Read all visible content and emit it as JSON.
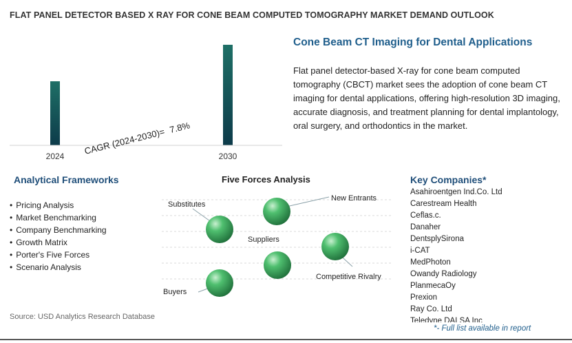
{
  "header": {
    "title": "FLAT PANEL DETECTOR BASED X RAY FOR CONE BEAM COMPUTED TOMOGRAPHY MARKET DEMAND OUTLOOK"
  },
  "chart_data": {
    "type": "bar",
    "categories": [
      "2024",
      "2030"
    ],
    "values": [
      1.0,
      1.57
    ],
    "title": "",
    "xlabel": "",
    "ylabel": "",
    "grid": false,
    "annotation": {
      "label": "CAGR (2024-2030)=",
      "value": "7.8%"
    },
    "bar_gradient": [
      "#1e6f66",
      "#0d3b4a"
    ]
  },
  "summary": {
    "title": "Cone Beam CT Imaging for Dental Applications",
    "text": "Flat panel detector-based X-ray for cone beam computed tomography (CBCT) market sees the adoption of cone beam CT imaging for dental applications, offering high-resolution 3D imaging, accurate diagnosis, and treatment planning for dental implantology, oral surgery, and orthodontics in the market."
  },
  "frameworks": {
    "title": "Analytical Frameworks",
    "items": [
      "Pricing Analysis",
      "Market Benchmarking",
      "Company Benchmarking",
      "Growth Matrix",
      "Porter's Five Forces",
      "Scenario Analysis"
    ]
  },
  "five_forces": {
    "title": "Five Forces Analysis",
    "labels": {
      "substitutes": "Substitutes",
      "new_entrants": "New Entrants",
      "suppliers": "Suppliers",
      "competitive_rivalry": "Competitive Rivalry",
      "buyers": "Buyers"
    },
    "ball_color": "#2e8b57"
  },
  "key_companies": {
    "title": "Key Companies*",
    "items": [
      "Asahiroentgen Ind.Co. Ltd",
      "Carestream Health",
      "Ceflas.c.",
      "Danaher",
      "DentsplySirona",
      "i-CAT",
      "MedPhoton",
      "Owandy Radiology",
      "PlanmecaOy",
      "Prexion",
      "Ray Co. Ltd",
      "Teledyne DALSA Inc"
    ],
    "note": "*- Full list available in report"
  },
  "source": "Source: USD Analytics Research Database"
}
